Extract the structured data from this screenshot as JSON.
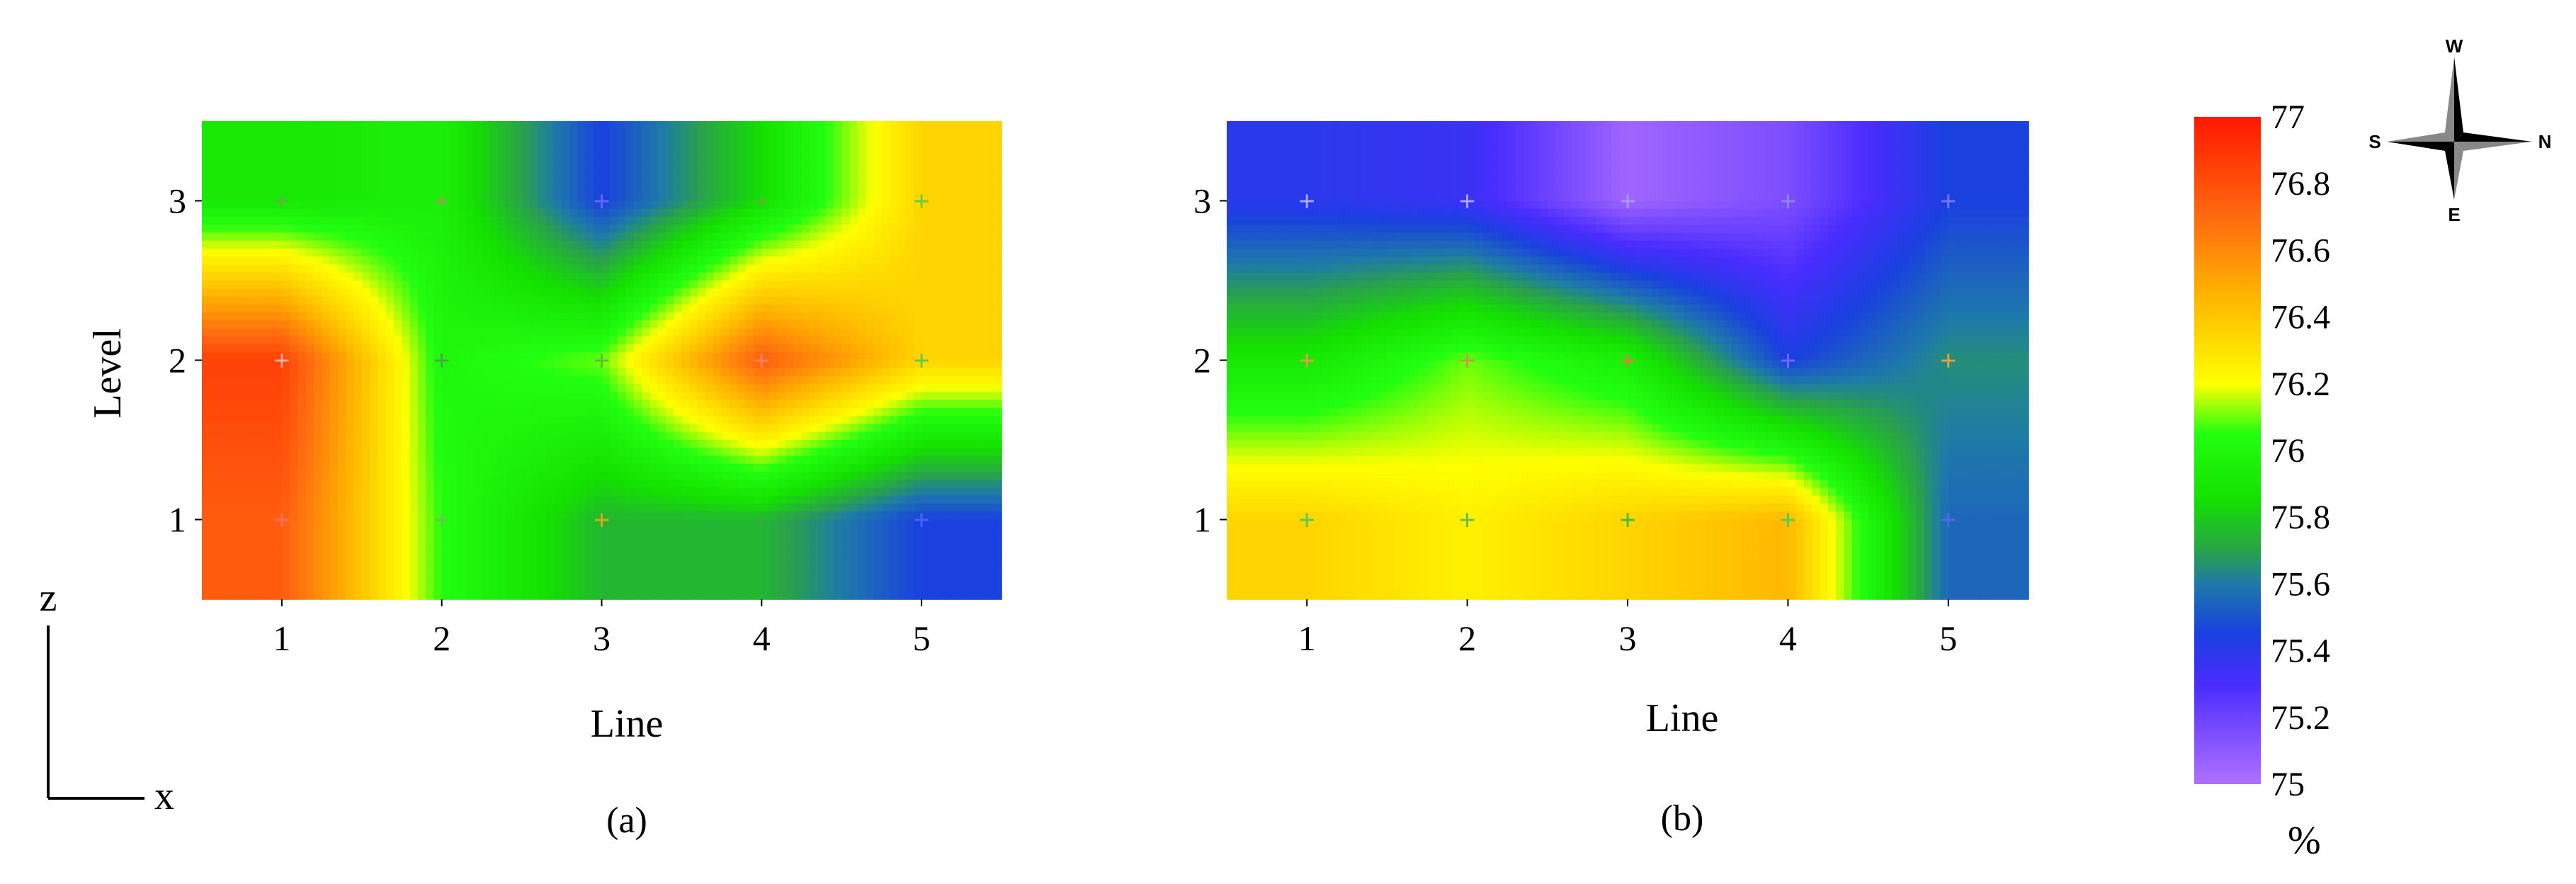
{
  "chart_data": [
    {
      "type": "heatmap",
      "panel_label": "(a)",
      "xlabel": "Line",
      "ylabel": "Level",
      "x_ticks": [
        "1",
        "2",
        "3",
        "4",
        "5"
      ],
      "y_ticks": [
        "1",
        "2",
        "3"
      ],
      "xlim": [
        0.5,
        5.5
      ],
      "ylim": [
        0.5,
        3.5
      ],
      "unit": "%",
      "values": [
        [
          76.75,
          76.05,
          75.75,
          75.75,
          75.45
        ],
        [
          76.85,
          76.0,
          76.1,
          76.75,
          76.35
        ],
        [
          75.9,
          75.95,
          75.45,
          75.85,
          76.35
        ]
      ],
      "marker_colors": [
        [
          "#ff7060",
          "#66cc44",
          "#e8a020",
          "#3aaa3a",
          "#4466ff"
        ],
        [
          "#ffaaa0",
          "#44aa44",
          "#66bb33",
          "#ff8060",
          "#66cc44"
        ],
        [
          "#55bb33",
          "#88aa44",
          "#6666ff",
          "#55bb33",
          "#66cc44"
        ]
      ]
    },
    {
      "type": "heatmap",
      "panel_label": "(b)",
      "xlabel": "Line",
      "ylabel": "",
      "x_ticks": [
        "1",
        "2",
        "3",
        "4",
        "5"
      ],
      "y_ticks": [
        "1",
        "2",
        "3"
      ],
      "xlim": [
        0.5,
        5.5
      ],
      "ylim": [
        0.5,
        3.5
      ],
      "unit": "%",
      "values": [
        [
          76.35,
          76.25,
          76.35,
          76.45,
          75.55
        ],
        [
          75.9,
          76.1,
          75.95,
          75.45,
          75.65
        ],
        [
          75.4,
          75.35,
          75.05,
          75.15,
          75.45
        ]
      ],
      "marker_colors": [
        [
          "#55cc55",
          "#66bb55",
          "#44bb44",
          "#55cc55",
          "#5566ee"
        ],
        [
          "#e89a40",
          "#c89a40",
          "#e08040",
          "#7766ff",
          "#e8a040"
        ],
        [
          "#aaaaff",
          "#aaaaff",
          "#aa99ff",
          "#8888ee",
          "#7777ff"
        ]
      ]
    }
  ],
  "colorbar": {
    "ticks": [
      "77",
      "76.8",
      "76.6",
      "76.4",
      "76.2",
      "76",
      "75.8",
      "75.6",
      "75.4",
      "75.2",
      "75"
    ],
    "min": 75,
    "max": 77,
    "unit_label": "%",
    "stops": [
      {
        "v": 75.0,
        "c": "#b070ff"
      },
      {
        "v": 75.3,
        "c": "#4a2cff"
      },
      {
        "v": 75.45,
        "c": "#1a40e0"
      },
      {
        "v": 75.6,
        "c": "#1e7aa8"
      },
      {
        "v": 75.7,
        "c": "#2aa24a"
      },
      {
        "v": 75.85,
        "c": "#14e000"
      },
      {
        "v": 76.05,
        "c": "#22ff10"
      },
      {
        "v": 76.2,
        "c": "#ffff00"
      },
      {
        "v": 76.45,
        "c": "#ffb800"
      },
      {
        "v": 76.7,
        "c": "#ff6a10"
      },
      {
        "v": 77.0,
        "c": "#ff1800"
      }
    ]
  },
  "compass": {
    "top": "W",
    "bottom": "E",
    "left": "S",
    "right": "N"
  },
  "axes_indicator": {
    "vertical": "z",
    "horizontal": "x"
  },
  "marker_glyph": "+"
}
